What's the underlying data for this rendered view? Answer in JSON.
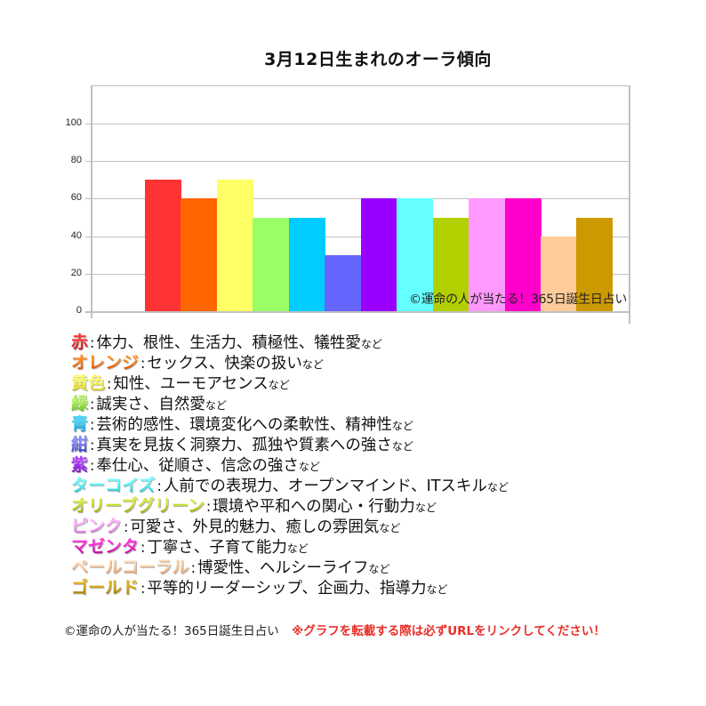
{
  "title": "3月12日生まれのオーラ傾向",
  "chart_data": {
    "type": "bar",
    "title": "3月12日生まれのオーラ傾向",
    "xlabel": "",
    "ylabel": "",
    "ylim": [
      0,
      120
    ],
    "yticks": [
      0,
      20,
      40,
      60,
      80,
      100
    ],
    "grid": true,
    "categories": [
      "赤",
      "オレンジ",
      "黄色",
      "緑",
      "青",
      "紺",
      "紫",
      "ターコイズ",
      "オリーブグリーン",
      "ピンク",
      "マゼンタ",
      "ペールコーラル",
      "ゴールド"
    ],
    "values": [
      70,
      60,
      70,
      50,
      50,
      30,
      60,
      60,
      50,
      60,
      60,
      40,
      50
    ],
    "colors": [
      "#ff3333",
      "#ff6600",
      "#ffff66",
      "#99ff66",
      "#00ccff",
      "#6666ff",
      "#9900ff",
      "#66ffff",
      "#b2d000",
      "#ff99ff",
      "#ff00cc",
      "#ffcc99",
      "#cc9900"
    ],
    "annotation": "©運命の人が当たる！365日誕生日占い"
  },
  "yticks": [
    {
      "label": "100",
      "value": 100
    },
    {
      "label": "80",
      "value": 80
    },
    {
      "label": "60",
      "value": 60
    },
    {
      "label": "40",
      "value": 40
    },
    {
      "label": "20",
      "value": 20
    },
    {
      "label": "0",
      "value": 0
    }
  ],
  "watermark": "©運命の人が当たる！365日誕生日占い",
  "legend": [
    {
      "label": "赤",
      "desc": "体力、根性、生活力、積極性、犠牲愛",
      "color_top": "#ff3b3b",
      "color_bottom": "#b01010"
    },
    {
      "label": "オレンジ",
      "desc": "セックス、快楽の扱い",
      "color_top": "#ff8a20",
      "color_bottom": "#c84800"
    },
    {
      "label": "黄色",
      "desc": "知性、ユーモアセンス",
      "color_top": "#ffff70",
      "color_bottom": "#d8c800"
    },
    {
      "label": "緑",
      "desc": "誠実さ、自然愛",
      "color_top": "#b8ff60",
      "color_bottom": "#50b000"
    },
    {
      "label": "青",
      "desc": "芸術的感性、環境変化への柔軟性、精神性",
      "color_top": "#40d8ff",
      "color_bottom": "#0090d0"
    },
    {
      "label": "紺",
      "desc": "真実を見抜く洞察力、孤独や質素への強さ",
      "color_top": "#8888ff",
      "color_bottom": "#3030c0"
    },
    {
      "label": "紫",
      "desc": "奉仕心、従順さ、信念の強さ",
      "color_top": "#b040ff",
      "color_bottom": "#6a00b8"
    },
    {
      "label": "ターコイズ",
      "desc": "人前での表現力、オープンマインド、ITスキル",
      "color_top": "#70ffff",
      "color_bottom": "#10b8c8"
    },
    {
      "label": "オリーブグリーン",
      "desc": "環境や平和への関心・行動力",
      "color_top": "#d8e840",
      "color_bottom": "#8a9a00"
    },
    {
      "label": "ピンク",
      "desc": "可愛さ、外見的魅力、癒しの雰囲気",
      "color_top": "#ffb0ff",
      "color_bottom": "#d060d0"
    },
    {
      "label": "マゼンタ",
      "desc": "丁寧さ、子育て能力",
      "color_top": "#ff30d8",
      "color_bottom": "#b00090"
    },
    {
      "label": "ペールコーラル",
      "desc": "博愛性、ヘルシーライフ",
      "color_top": "#ffd8b0",
      "color_bottom": "#e09060"
    },
    {
      "label": "ゴールド",
      "desc": "平等的リーダーシップ、企画力、指導力",
      "color_top": "#e0b020",
      "color_bottom": "#9a7000"
    }
  ],
  "legend_separator": ":",
  "legend_suffix": "など",
  "footer": {
    "credit": "©運命の人が当たる！365日誕生日占い",
    "warning": "※グラフを転載する際は必ずURLをリンクしてください！"
  }
}
